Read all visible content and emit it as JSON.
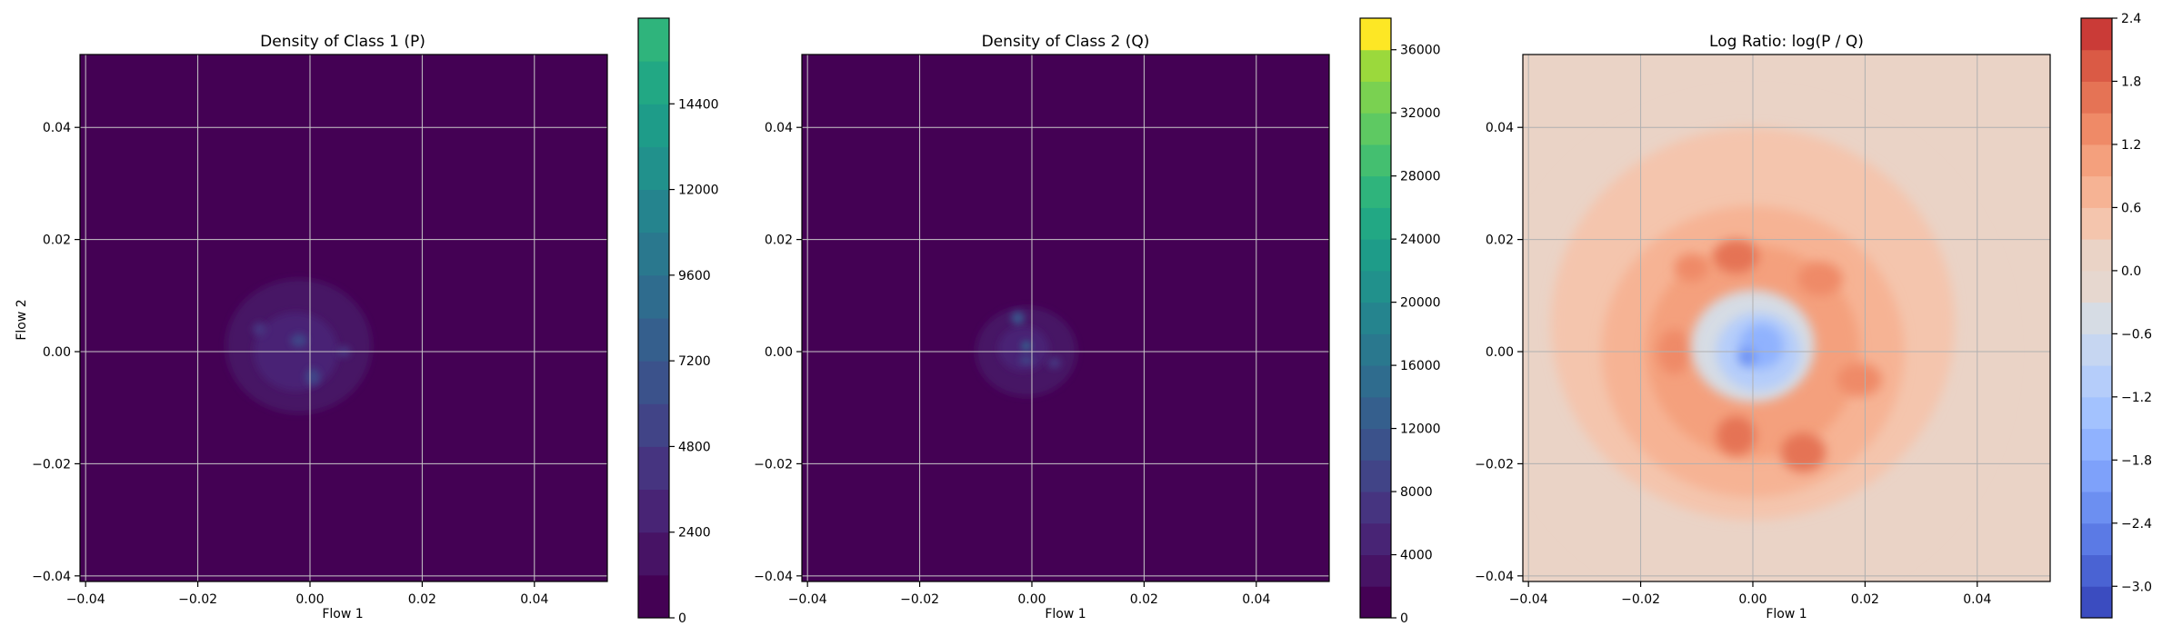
{
  "chart_data": [
    {
      "type": "heatmap",
      "title": "Density of Class 1 (P)",
      "xlabel": "Flow 1",
      "ylabel": "Flow 2",
      "xlim": [
        -0.041,
        0.053
      ],
      "ylim": [
        -0.041,
        0.053
      ],
      "xticks": [
        "−0.04",
        "−0.02",
        "0.00",
        "0.02",
        "0.04"
      ],
      "xtick_values": [
        -0.04,
        -0.02,
        0.0,
        0.02,
        0.04
      ],
      "yticks": [
        "−0.04",
        "−0.02",
        "0.00",
        "0.02",
        "0.04"
      ],
      "ytick_values": [
        -0.04,
        -0.02,
        0.0,
        0.02,
        0.04
      ],
      "grid": true,
      "colormap": "viridis",
      "background_color": "#440154",
      "colorbar": {
        "range": [
          0,
          16800
        ],
        "ticks": [
          "0",
          "2400",
          "4800",
          "7200",
          "9600",
          "12000",
          "14400"
        ],
        "tick_values": [
          0,
          2400,
          4800,
          7200,
          9600,
          12000,
          14400
        ],
        "levels": 14,
        "colors": [
          "#440154",
          "#471365",
          "#482475",
          "#463480",
          "#414487",
          "#3b528b",
          "#355f8d",
          "#2f6c8e",
          "#2a788e",
          "#25848e",
          "#21918c",
          "#1e9c89",
          "#22a884",
          "#2fb47c"
        ]
      },
      "blobs": [
        {
          "x": -0.002,
          "y": 0.001,
          "rx": 0.013,
          "ry": 0.012,
          "level": 1
        },
        {
          "x": -0.0025,
          "y": 0.0,
          "rx": 0.0075,
          "ry": 0.007,
          "level": 2
        },
        {
          "x": -0.002,
          "y": 0.002,
          "rx": 0.0015,
          "ry": 0.0012,
          "level": 4
        },
        {
          "x": 0.0005,
          "y": -0.0045,
          "rx": 0.0013,
          "ry": 0.0015,
          "level": 4
        },
        {
          "x": -0.009,
          "y": 0.004,
          "rx": 0.0012,
          "ry": 0.0012,
          "level": 3
        },
        {
          "x": 0.006,
          "y": 0.0,
          "rx": 0.0012,
          "ry": 0.001,
          "level": 3
        }
      ]
    },
    {
      "type": "heatmap",
      "title": "Density of Class 2 (Q)",
      "xlabel": "Flow 1",
      "ylabel": "",
      "xlim": [
        -0.041,
        0.053
      ],
      "ylim": [
        -0.041,
        0.053
      ],
      "xticks": [
        "−0.04",
        "−0.02",
        "0.00",
        "0.02",
        "0.04"
      ],
      "xtick_values": [
        -0.04,
        -0.02,
        0.0,
        0.02,
        0.04
      ],
      "yticks": [
        "−0.04",
        "−0.02",
        "0.00",
        "0.02",
        "0.04"
      ],
      "ytick_values": [
        -0.04,
        -0.02,
        0.0,
        0.02,
        0.04
      ],
      "grid": true,
      "colormap": "viridis",
      "background_color": "#440154",
      "colorbar": {
        "range": [
          0,
          38000
        ],
        "ticks": [
          "0",
          "4000",
          "8000",
          "12000",
          "16000",
          "20000",
          "24000",
          "28000",
          "32000",
          "36000"
        ],
        "tick_values": [
          0,
          4000,
          8000,
          12000,
          16000,
          20000,
          24000,
          28000,
          32000,
          36000
        ],
        "levels": 19,
        "colors": [
          "#440154",
          "#471365",
          "#482475",
          "#463480",
          "#414487",
          "#3b528b",
          "#355f8d",
          "#2f6c8e",
          "#2a788e",
          "#25848e",
          "#21918c",
          "#1e9c89",
          "#22a884",
          "#2fb47c",
          "#44bf70",
          "#5ec962",
          "#7ad151",
          "#9bd93c",
          "#fde725"
        ]
      },
      "blobs": [
        {
          "x": -0.001,
          "y": 0.0,
          "rx": 0.009,
          "ry": 0.008,
          "level": 1
        },
        {
          "x": -0.0015,
          "y": 0.0005,
          "rx": 0.0045,
          "ry": 0.004,
          "level": 2
        },
        {
          "x": -0.0025,
          "y": 0.006,
          "rx": 0.0012,
          "ry": 0.0012,
          "level": 5
        },
        {
          "x": -0.001,
          "y": 0.001,
          "rx": 0.0009,
          "ry": 0.0009,
          "level": 6
        },
        {
          "x": -0.001,
          "y": -0.0015,
          "rx": 0.0012,
          "ry": 0.0008,
          "level": 4
        },
        {
          "x": 0.004,
          "y": -0.002,
          "rx": 0.0012,
          "ry": 0.001,
          "level": 3
        }
      ]
    },
    {
      "type": "heatmap",
      "title": "Log Ratio: log(P / Q)",
      "xlabel": "Flow 1",
      "ylabel": "",
      "xlim": [
        -0.041,
        0.053
      ],
      "ylim": [
        -0.041,
        0.053
      ],
      "xticks": [
        "−0.04",
        "−0.02",
        "0.00",
        "0.02",
        "0.04"
      ],
      "xtick_values": [
        -0.04,
        -0.02,
        0.0,
        0.02,
        0.04
      ],
      "yticks": [
        "−0.04",
        "−0.02",
        "0.00",
        "0.02",
        "0.04"
      ],
      "ytick_values": [
        -0.04,
        -0.02,
        0.0,
        0.02,
        0.04
      ],
      "grid": true,
      "colormap": "coolwarm",
      "background_color": "#ead3c6",
      "colorbar": {
        "range": [
          -3.3,
          2.4
        ],
        "ticks": [
          "−3.0",
          "−2.4",
          "−1.8",
          "−1.2",
          "−0.6",
          "0.0",
          "0.6",
          "1.2",
          "1.8",
          "2.4"
        ],
        "tick_values": [
          -3.0,
          -2.4,
          -1.8,
          -1.2,
          -0.6,
          0.0,
          0.6,
          1.2,
          1.8,
          2.4
        ],
        "levels": 19,
        "colors": [
          "#3b4cc0",
          "#4a63d3",
          "#5b7ae5",
          "#6c8ff1",
          "#7ea1fa",
          "#90b2fe",
          "#a3c2fe",
          "#b5cdfa",
          "#c6d6f1",
          "#d6dce4",
          "#e6d7cf",
          "#ead3c6",
          "#f4c5ad",
          "#f6b394",
          "#f4a07d",
          "#ef8a67",
          "#e57355",
          "#da5a45",
          "#ca3b37"
        ]
      },
      "regions": [
        {
          "x": 0.0,
          "y": 0.0,
          "rx": 0.046,
          "ry": 0.046,
          "level": 11
        },
        {
          "x": 0.0,
          "y": 0.005,
          "rx": 0.036,
          "ry": 0.035,
          "level": 12
        },
        {
          "x": 0.0,
          "y": 0.0,
          "rx": 0.027,
          "ry": 0.026,
          "level": 13
        },
        {
          "x": 0.0,
          "y": 0.0,
          "rx": 0.019,
          "ry": 0.019,
          "level": 14
        },
        {
          "x": -0.003,
          "y": 0.017,
          "rx": 0.004,
          "ry": 0.003,
          "level": 16
        },
        {
          "x": -0.011,
          "y": 0.015,
          "rx": 0.003,
          "ry": 0.0025,
          "level": 15
        },
        {
          "x": -0.014,
          "y": 0.0,
          "rx": 0.003,
          "ry": 0.004,
          "level": 15
        },
        {
          "x": 0.012,
          "y": 0.013,
          "rx": 0.004,
          "ry": 0.003,
          "level": 15
        },
        {
          "x": 0.019,
          "y": -0.005,
          "rx": 0.004,
          "ry": 0.003,
          "level": 15
        },
        {
          "x": -0.003,
          "y": -0.015,
          "rx": 0.0035,
          "ry": 0.0035,
          "level": 16
        },
        {
          "x": 0.009,
          "y": -0.018,
          "rx": 0.004,
          "ry": 0.0035,
          "level": 16
        },
        {
          "x": 0.0,
          "y": 0.001,
          "rx": 0.011,
          "ry": 0.01,
          "level": 9
        },
        {
          "x": 0.001,
          "y": 0.0,
          "rx": 0.0075,
          "ry": 0.007,
          "level": 7
        },
        {
          "x": 0.0015,
          "y": 0.001,
          "rx": 0.004,
          "ry": 0.004,
          "level": 5
        },
        {
          "x": -0.001,
          "y": -0.001,
          "rx": 0.0015,
          "ry": 0.0015,
          "level": 3
        }
      ]
    }
  ]
}
